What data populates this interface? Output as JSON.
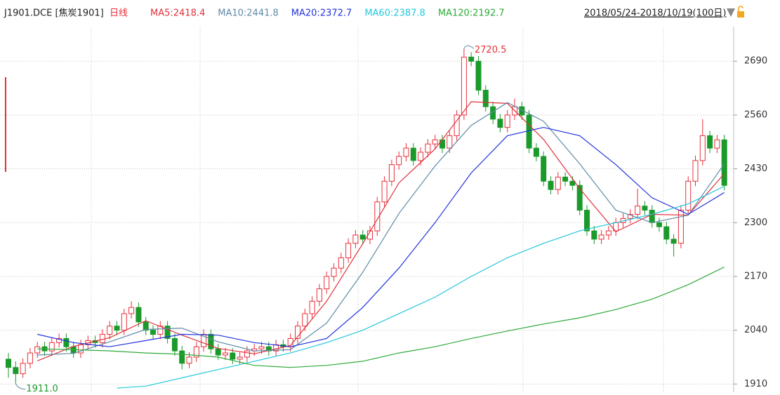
{
  "chart_data": {
    "type": "candlestick",
    "symbol": "J1901.DCE [焦炭1901]",
    "period": "日线",
    "date_range": "2018/05/24-2018/10/19(100日)",
    "high_label": "2720.5",
    "low_label": "1911.0",
    "up_color": "#e8303a",
    "down_color": "#1a9a2a",
    "ylim": [
      1897,
      2804
    ],
    "yticks": [
      1910,
      2040,
      2170,
      2300,
      2430,
      2560,
      2690
    ],
    "grid": true,
    "candles": [
      [
        1970,
        1985,
        1925,
        1950
      ],
      [
        1950,
        1965,
        1911,
        1935
      ],
      [
        1935,
        1972,
        1925,
        1960
      ],
      [
        1960,
        1997,
        1948,
        1985
      ],
      [
        1985,
        2012,
        1973,
        2000
      ],
      [
        2000,
        2012,
        1978,
        1990
      ],
      [
        1990,
        2022,
        1978,
        2010
      ],
      [
        2010,
        2032,
        1998,
        2020
      ],
      [
        2020,
        2032,
        1988,
        2000
      ],
      [
        2000,
        2012,
        1973,
        1985
      ],
      [
        1985,
        2017,
        1973,
        2005
      ],
      [
        2005,
        2027,
        1993,
        2015
      ],
      [
        2015,
        2027,
        1998,
        2010
      ],
      [
        2010,
        2042,
        1998,
        2030
      ],
      [
        2030,
        2062,
        2018,
        2050
      ],
      [
        2050,
        2062,
        2028,
        2040
      ],
      [
        2040,
        2092,
        2028,
        2080
      ],
      [
        2080,
        2110,
        2068,
        2095
      ],
      [
        2095,
        2107,
        2048,
        2060
      ],
      [
        2060,
        2072,
        2028,
        2040
      ],
      [
        2040,
        2052,
        2018,
        2030
      ],
      [
        2030,
        2062,
        2018,
        2050
      ],
      [
        2050,
        2062,
        2008,
        2020
      ],
      [
        2020,
        2032,
        1978,
        1990
      ],
      [
        1990,
        2002,
        1945,
        1960
      ],
      [
        1960,
        1987,
        1948,
        1975
      ],
      [
        1975,
        2012,
        1963,
        2000
      ],
      [
        2000,
        2042,
        1988,
        2030
      ],
      [
        2030,
        2042,
        1983,
        1995
      ],
      [
        1995,
        2007,
        1968,
        1980
      ],
      [
        1980,
        1997,
        1968,
        1985
      ],
      [
        1985,
        1997,
        1958,
        1970
      ],
      [
        1970,
        1987,
        1958,
        1975
      ],
      [
        1975,
        2002,
        1963,
        1990
      ],
      [
        1990,
        2007,
        1978,
        1995
      ],
      [
        1995,
        2012,
        1983,
        2000
      ],
      [
        2000,
        2012,
        1978,
        1990
      ],
      [
        1990,
        2017,
        1978,
        2005
      ],
      [
        2005,
        2017,
        1988,
        2000
      ],
      [
        2000,
        2032,
        1988,
        2020
      ],
      [
        2020,
        2062,
        2008,
        2050
      ],
      [
        2050,
        2092,
        2038,
        2080
      ],
      [
        2080,
        2122,
        2068,
        2110
      ],
      [
        2110,
        2152,
        2098,
        2140
      ],
      [
        2140,
        2182,
        2128,
        2170
      ],
      [
        2170,
        2202,
        2158,
        2190
      ],
      [
        2190,
        2227,
        2178,
        2215
      ],
      [
        2215,
        2262,
        2203,
        2250
      ],
      [
        2250,
        2282,
        2238,
        2270
      ],
      [
        2270,
        2282,
        2248,
        2260
      ],
      [
        2260,
        2292,
        2248,
        2280
      ],
      [
        2280,
        2362,
        2268,
        2350
      ],
      [
        2350,
        2412,
        2338,
        2400
      ],
      [
        2400,
        2452,
        2388,
        2440
      ],
      [
        2440,
        2472,
        2428,
        2460
      ],
      [
        2460,
        2492,
        2448,
        2480
      ],
      [
        2480,
        2492,
        2438,
        2450
      ],
      [
        2450,
        2482,
        2438,
        2470
      ],
      [
        2470,
        2502,
        2458,
        2490
      ],
      [
        2490,
        2512,
        2478,
        2500
      ],
      [
        2500,
        2512,
        2468,
        2480
      ],
      [
        2480,
        2522,
        2468,
        2510
      ],
      [
        2510,
        2572,
        2498,
        2560
      ],
      [
        2560,
        2720.5,
        2548,
        2700
      ],
      [
        2700,
        2712,
        2678,
        2690
      ],
      [
        2690,
        2702,
        2608,
        2620
      ],
      [
        2620,
        2632,
        2568,
        2580
      ],
      [
        2580,
        2592,
        2538,
        2550
      ],
      [
        2550,
        2562,
        2518,
        2530
      ],
      [
        2530,
        2572,
        2518,
        2560
      ],
      [
        2560,
        2600,
        2548,
        2580
      ],
      [
        2580,
        2592,
        2548,
        2560
      ],
      [
        2560,
        2572,
        2468,
        2480
      ],
      [
        2480,
        2492,
        2448,
        2460
      ],
      [
        2460,
        2472,
        2388,
        2400
      ],
      [
        2400,
        2412,
        2368,
        2380
      ],
      [
        2380,
        2422,
        2368,
        2410
      ],
      [
        2410,
        2422,
        2388,
        2400
      ],
      [
        2400,
        2412,
        2378,
        2390
      ],
      [
        2390,
        2402,
        2318,
        2330
      ],
      [
        2330,
        2342,
        2268,
        2280
      ],
      [
        2280,
        2292,
        2248,
        2260
      ],
      [
        2260,
        2282,
        2248,
        2270
      ],
      [
        2270,
        2292,
        2258,
        2280
      ],
      [
        2280,
        2312,
        2268,
        2300
      ],
      [
        2300,
        2322,
        2288,
        2310
      ],
      [
        2310,
        2332,
        2298,
        2320
      ],
      [
        2320,
        2382,
        2308,
        2340
      ],
      [
        2340,
        2352,
        2318,
        2330
      ],
      [
        2330,
        2342,
        2288,
        2300
      ],
      [
        2300,
        2312,
        2278,
        2290
      ],
      [
        2290,
        2302,
        2248,
        2260
      ],
      [
        2260,
        2272,
        2218,
        2250
      ],
      [
        2250,
        2342,
        2238,
        2330
      ],
      [
        2330,
        2412,
        2318,
        2400
      ],
      [
        2400,
        2462,
        2388,
        2450
      ],
      [
        2450,
        2550,
        2438,
        2510
      ],
      [
        2510,
        2522,
        2468,
        2480
      ],
      [
        2480,
        2512,
        2468,
        2500
      ],
      [
        2500,
        2512,
        2378,
        2390
      ]
    ],
    "series": [
      {
        "name": "MA5:2418.4",
        "color": "#e0303a",
        "x": [
          4,
          9,
          14,
          19,
          24,
          29,
          34,
          39,
          44,
          49,
          54,
          59,
          64,
          69,
          74,
          79,
          84,
          89,
          94,
          99
        ],
        "values": [
          1966,
          2001,
          2022,
          2063,
          2028,
          1996,
          1983,
          2003,
          2110,
          2249,
          2396,
          2478,
          2592,
          2588,
          2501,
          2382,
          2278,
          2320,
          2318,
          2418.4
        ]
      },
      {
        "name": "MA10:2441.8",
        "color": "#5f8aa8",
        "x": [
          4,
          9,
          14,
          19,
          24,
          29,
          34,
          39,
          44,
          49,
          54,
          59,
          64,
          69,
          74,
          79,
          84,
          89,
          94,
          99
        ],
        "values": [
          1980,
          1984,
          2012,
          2042,
          2045,
          2012,
          1990,
          1993,
          2057,
          2180,
          2322,
          2437,
          2535,
          2590,
          2545,
          2442,
          2330,
          2300,
          2318,
          2441.8
        ]
      },
      {
        "name": "MA20:2372.7",
        "color": "#2233dd",
        "x": [
          4,
          9,
          14,
          19,
          24,
          29,
          34,
          39,
          44,
          49,
          54,
          59,
          64,
          69,
          74,
          79,
          84,
          89,
          94,
          99
        ],
        "values": [
          2030,
          2010,
          2000,
          2015,
          2030,
          2028,
          2010,
          2000,
          2020,
          2095,
          2190,
          2300,
          2420,
          2510,
          2530,
          2510,
          2440,
          2360,
          2320,
          2372.7
        ]
      },
      {
        "name": "MA60:2387.8",
        "color": "#22c8dc",
        "x": [
          15,
          19,
          24,
          29,
          34,
          39,
          44,
          49,
          54,
          59,
          64,
          69,
          74,
          79,
          84,
          89,
          94,
          99
        ],
        "values": [
          1900,
          1905,
          1925,
          1945,
          1965,
          1985,
          2010,
          2040,
          2080,
          2120,
          2170,
          2215,
          2250,
          2280,
          2300,
          2320,
          2345,
          2387.8
        ]
      },
      {
        "name": "MA120:2192.7",
        "color": "#2eaa3a",
        "x": [
          4,
          9,
          14,
          19,
          24,
          29,
          34,
          39,
          44,
          49,
          54,
          59,
          64,
          69,
          74,
          79,
          84,
          89,
          94,
          99
        ],
        "values": [
          1995,
          1993,
          1990,
          1985,
          1982,
          1975,
          1955,
          1950,
          1955,
          1965,
          1985,
          2000,
          2020,
          2038,
          2055,
          2070,
          2090,
          2115,
          2150,
          2192.7
        ]
      }
    ]
  }
}
